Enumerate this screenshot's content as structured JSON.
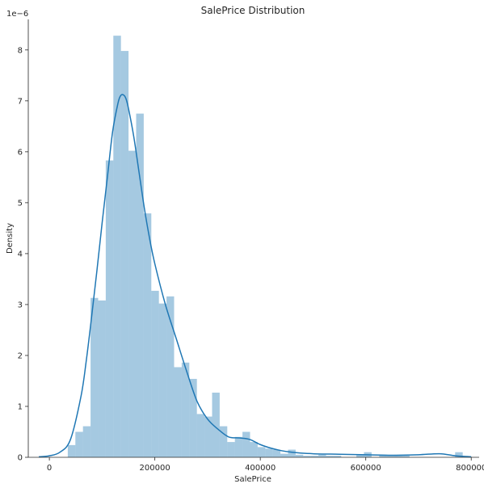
{
  "chart_data": {
    "type": "bar",
    "title": "SalePrice Distribution",
    "xlabel": "SalePrice",
    "ylabel": "Density",
    "y_offset_label": "1e−6",
    "xlim": [
      -40000,
      815000
    ],
    "ylim": [
      0,
      8.6
    ],
    "xticks": [
      0,
      200000,
      400000,
      600000,
      800000
    ],
    "yticks": [
      0,
      1,
      2,
      3,
      4,
      5,
      6,
      7,
      8
    ],
    "bin_edges_start": 34900,
    "bin_width": 14403,
    "histogram_density_values": [
      0.24,
      0.5,
      0.61,
      3.13,
      3.08,
      5.83,
      8.28,
      7.98,
      6.02,
      6.75,
      4.79,
      3.27,
      3.02,
      3.16,
      1.77,
      1.86,
      1.54,
      0.85,
      0.8,
      1.27,
      0.61,
      0.3,
      0.4,
      0.5,
      0.3,
      0.2,
      0.17,
      0.15,
      0.07,
      0.15,
      0.05,
      0.03,
      0.03,
      0.05,
      0.03,
      0.03,
      0.0,
      0.0,
      0.05,
      0.1,
      0.0,
      0.05,
      0.03,
      0.05,
      0.03,
      0.0,
      0.0,
      0.0,
      0.0,
      0.0,
      0.0,
      0.1
    ],
    "kde": {
      "x": [
        -20000,
        0,
        20000,
        40000,
        60000,
        70000,
        80000,
        90000,
        100000,
        110000,
        120000,
        130000,
        135000,
        140000,
        145000,
        150000,
        160000,
        170000,
        180000,
        190000,
        200000,
        220000,
        240000,
        260000,
        280000,
        300000,
        320000,
        340000,
        360000,
        380000,
        400000,
        420000,
        440000,
        460000,
        500000,
        550000,
        600000,
        650000,
        700000,
        740000,
        770000,
        800000
      ],
      "y": [
        0.01,
        0.03,
        0.1,
        0.35,
        1.2,
        1.9,
        2.75,
        3.65,
        4.6,
        5.5,
        6.4,
        6.95,
        7.1,
        7.12,
        7.05,
        6.85,
        6.3,
        5.6,
        4.9,
        4.3,
        3.8,
        3.0,
        2.35,
        1.7,
        1.1,
        0.75,
        0.55,
        0.4,
        0.38,
        0.35,
        0.25,
        0.18,
        0.13,
        0.1,
        0.07,
        0.06,
        0.05,
        0.04,
        0.05,
        0.07,
        0.03,
        0.01
      ]
    },
    "grid": false,
    "legend": "none",
    "colors": {
      "bar": "#1f77b4",
      "bar_opacity": 0.4,
      "kde": "#1f77b4"
    }
  }
}
